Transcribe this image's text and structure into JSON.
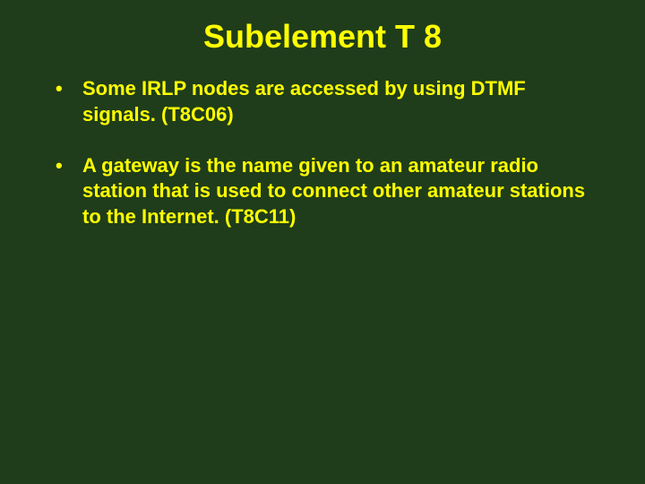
{
  "slide": {
    "background_color": "#1f3d1a",
    "text_color": "#ffff00",
    "title": "Subelement T 8",
    "title_fontsize": 36,
    "bullet_fontsize": 22,
    "bullets": [
      "Some IRLP nodes are accessed by using DTMF signals. (T8C06)",
      "A gateway is the name given to an amateur radio station that is used to connect other amateur stations to the Internet. (T8C11)"
    ]
  }
}
